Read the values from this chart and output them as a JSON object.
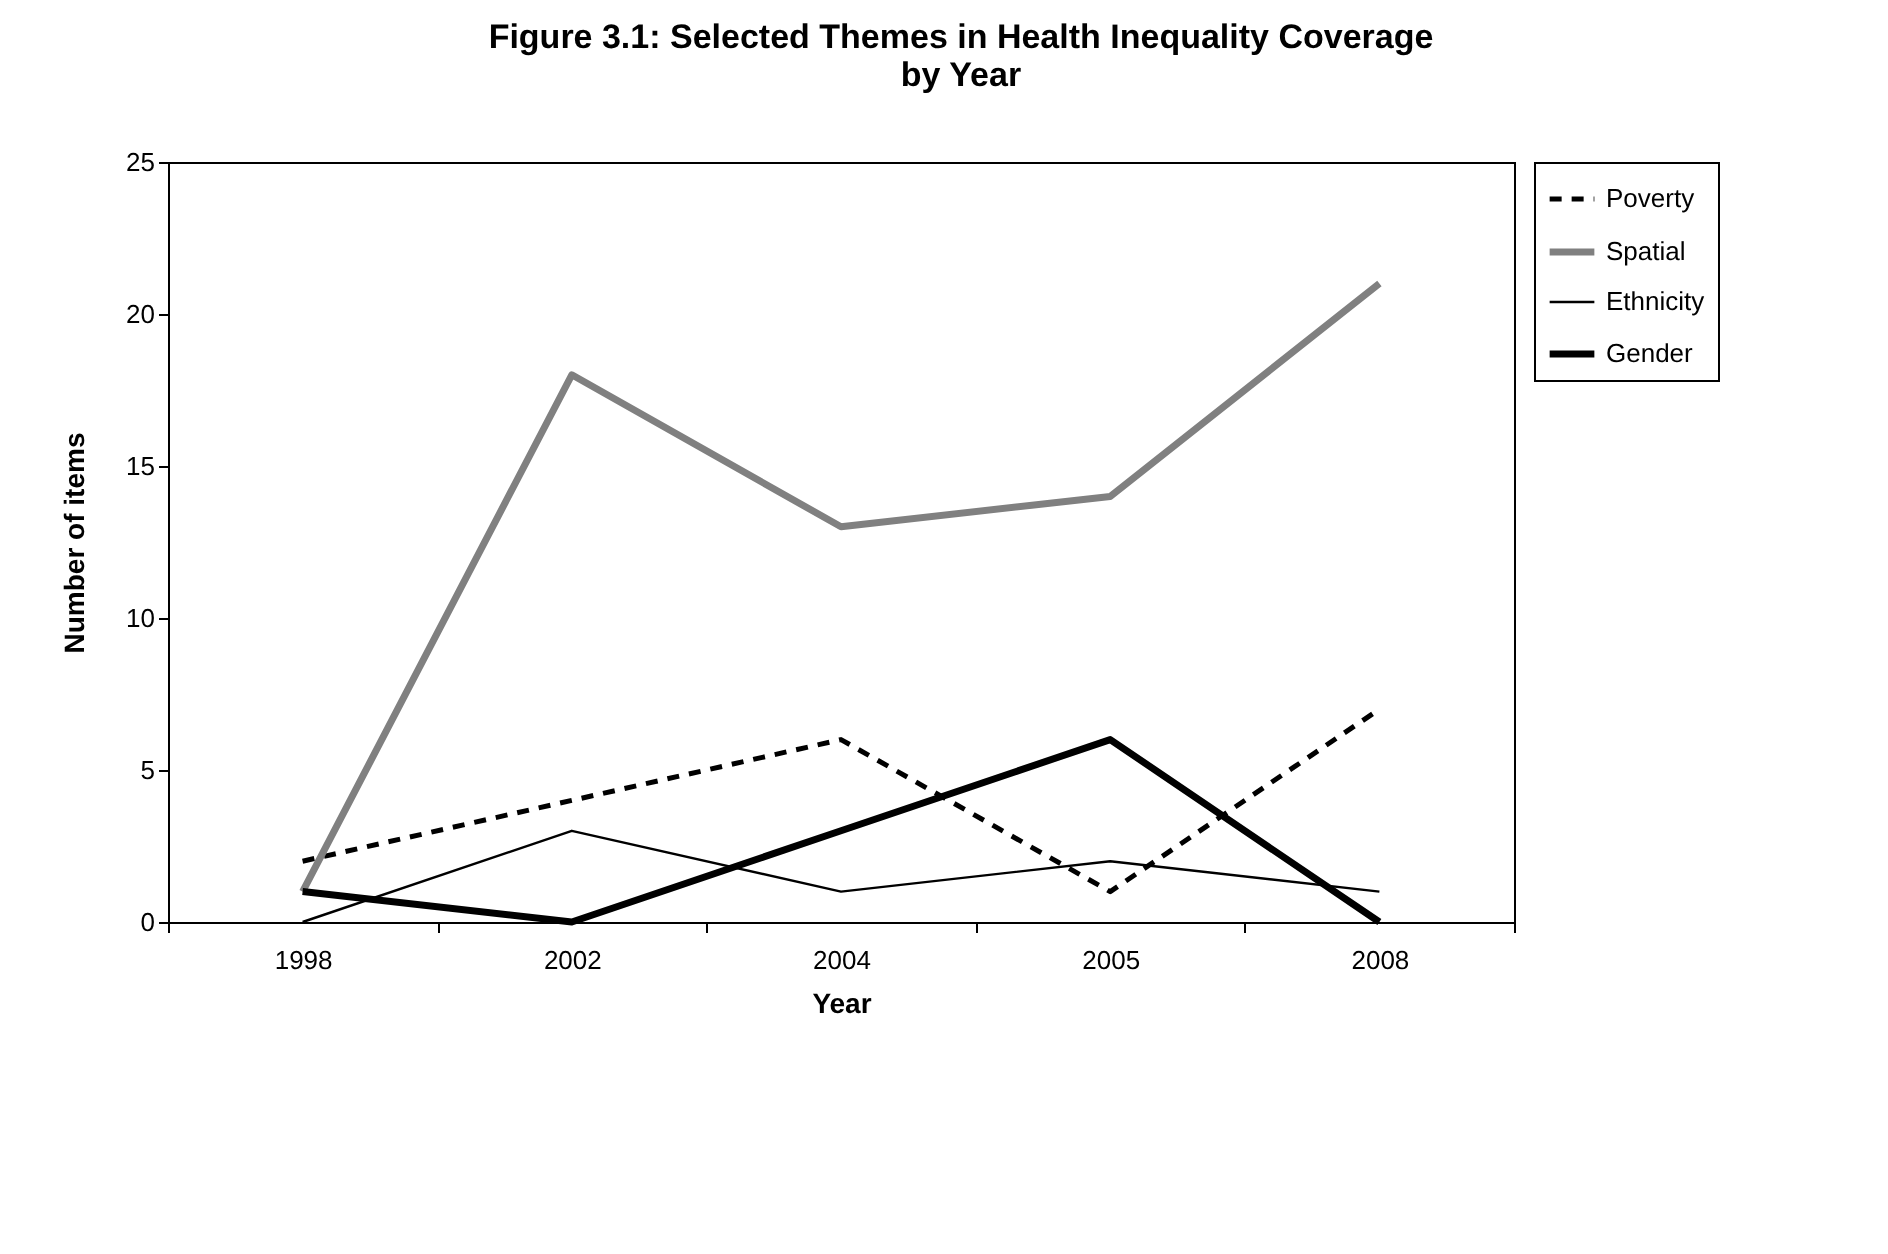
{
  "chart_data": {
    "type": "line",
    "title": "Figure 3.1: Selected Themes in Health Inequality Coverage by Year",
    "xlabel": "Year",
    "ylabel": "Number of items",
    "categories": [
      "1998",
      "2002",
      "2004",
      "2005",
      "2008"
    ],
    "series": [
      {
        "name": "Poverty",
        "color": "#000000",
        "line_style": "dashed",
        "values": [
          2,
          4,
          6,
          1,
          7
        ]
      },
      {
        "name": "Spatial",
        "color": "#808080",
        "line_style": "solid",
        "values": [
          1,
          18,
          13,
          14,
          21
        ]
      },
      {
        "name": "Ethnicity",
        "color": "#000000",
        "line_style": "solid",
        "values": [
          0,
          3,
          1,
          2,
          1
        ]
      },
      {
        "name": "Gender",
        "color": "#000000",
        "line_style": "solid",
        "values": [
          1,
          0,
          3,
          6,
          0
        ]
      }
    ],
    "ylim": [
      0,
      25
    ],
    "yticks": [
      0,
      5,
      10,
      15,
      20,
      25
    ],
    "grid": false,
    "legend": "right",
    "marker": "none"
  }
}
